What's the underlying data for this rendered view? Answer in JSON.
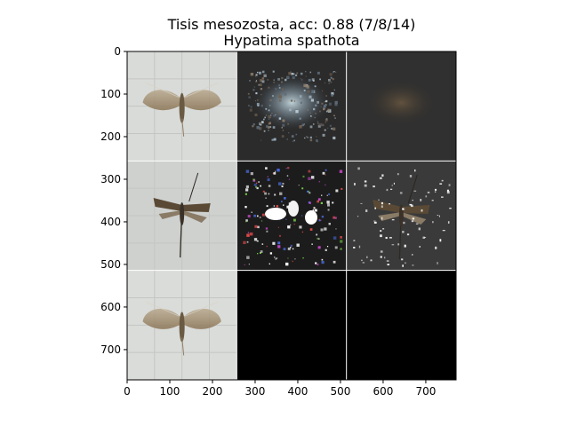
{
  "chart_data": {
    "type": "image_grid",
    "title": "Tisis mesozosta, acc: 0.88 (7/8/14)",
    "subtitle": "Hypatima spathota",
    "xlim": [
      0,
      771
    ],
    "ylim": [
      771,
      0
    ],
    "xticks": [
      0,
      100,
      200,
      300,
      400,
      500,
      600,
      700
    ],
    "yticks": [
      0,
      100,
      200,
      300,
      400,
      500,
      600,
      700
    ],
    "grid": {
      "rows": 3,
      "cols": 3,
      "cell_size": 257
    },
    "panels": [
      {
        "row": 0,
        "col": 0,
        "kind": "photo",
        "subject": "moth-spread-wings",
        "bg": "#d9dbd8"
      },
      {
        "row": 0,
        "col": 1,
        "kind": "saliency",
        "bg": "#2b2b2b"
      },
      {
        "row": 0,
        "col": 2,
        "kind": "masked-photo",
        "bg": "#303030"
      },
      {
        "row": 1,
        "col": 0,
        "kind": "photo",
        "subject": "moth-pinned",
        "bg": "#cfd1cf"
      },
      {
        "row": 1,
        "col": 1,
        "kind": "saliency",
        "bg": "#1c1c1c"
      },
      {
        "row": 1,
        "col": 2,
        "kind": "masked-photo",
        "bg": "#3a3a3a"
      },
      {
        "row": 2,
        "col": 0,
        "kind": "photo",
        "subject": "moth-spread-wings",
        "bg": "#dadcd9"
      },
      {
        "row": 2,
        "col": 1,
        "kind": "blank",
        "bg": "#000000"
      },
      {
        "row": 2,
        "col": 2,
        "kind": "blank",
        "bg": "#000000"
      }
    ]
  }
}
